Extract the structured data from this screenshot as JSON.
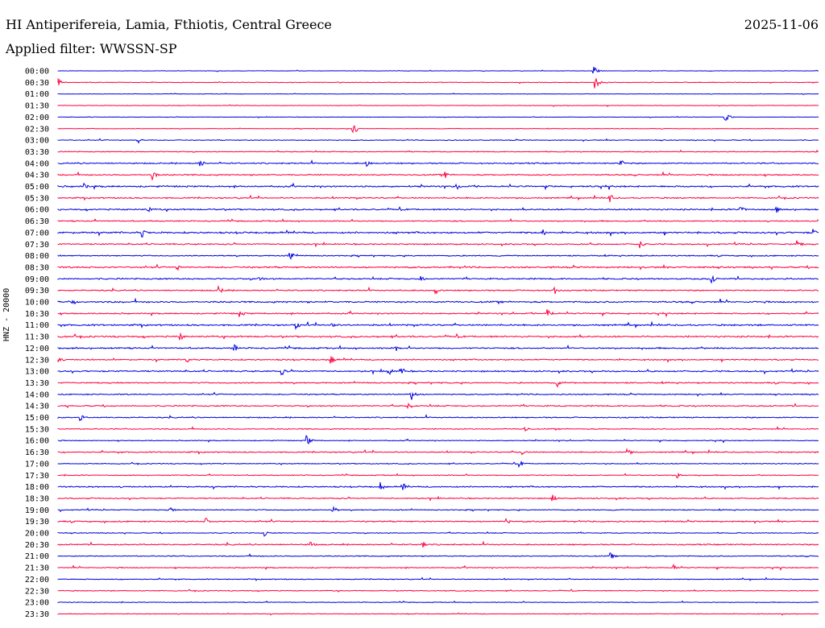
{
  "header": {
    "title": "HI Antiperifereia, Lamia, Fthiotis, Central Greece",
    "date": "2025-11-06",
    "filter": "Applied filter: WWSSN-SP"
  },
  "colors": {
    "trace_a": "#0000e0",
    "trace_b": "#ff0040",
    "background": "#ffffff",
    "text": "#000000"
  },
  "chart_data": {
    "type": "line",
    "ylabel": "HNZ - 20000",
    "rows": [
      "00:00",
      "00:30",
      "01:00",
      "01:30",
      "02:00",
      "02:30",
      "03:00",
      "03:30",
      "04:00",
      "04:30",
      "05:00",
      "05:30",
      "06:00",
      "06:30",
      "07:00",
      "07:30",
      "08:00",
      "08:30",
      "09:00",
      "09:30",
      "10:00",
      "10:30",
      "11:00",
      "11:30",
      "12:00",
      "12:30",
      "13:00",
      "13:30",
      "14:00",
      "14:30",
      "15:00",
      "15:30",
      "16:00",
      "16:30",
      "17:00",
      "17:30",
      "18:00",
      "18:30",
      "19:00",
      "19:30",
      "20:00",
      "20:30",
      "21:00",
      "21:30",
      "22:00",
      "22:30",
      "23:00",
      "23:30"
    ],
    "row_colors": "alternating trace_a / trace_b",
    "noise_level": [
      0.15,
      0.25,
      0.15,
      0.2,
      0.15,
      0.2,
      0.3,
      0.3,
      0.45,
      0.45,
      0.55,
      0.45,
      0.5,
      0.4,
      0.6,
      0.45,
      0.4,
      0.55,
      0.5,
      0.45,
      0.55,
      0.45,
      0.55,
      0.55,
      0.5,
      0.45,
      0.5,
      0.45,
      0.4,
      0.45,
      0.4,
      0.35,
      0.3,
      0.4,
      0.3,
      0.3,
      0.45,
      0.4,
      0.35,
      0.45,
      0.3,
      0.45,
      0.35,
      0.35,
      0.3,
      0.3,
      0.25,
      0.25
    ],
    "events": [
      {
        "row": 0,
        "t": 0.705,
        "amp": 6
      },
      {
        "row": 1,
        "t": 0.0,
        "amp": 5
      },
      {
        "row": 1,
        "t": 0.707,
        "amp": 8
      },
      {
        "row": 4,
        "t": 0.878,
        "amp": 7
      },
      {
        "row": 5,
        "t": 0.388,
        "amp": 11
      },
      {
        "row": 6,
        "t": 0.105,
        "amp": 4
      },
      {
        "row": 8,
        "t": 0.187,
        "amp": 5
      },
      {
        "row": 8,
        "t": 0.405,
        "amp": 5
      },
      {
        "row": 8,
        "t": 0.74,
        "amp": 5
      },
      {
        "row": 9,
        "t": 0.124,
        "amp": 7
      },
      {
        "row": 9,
        "t": 0.51,
        "amp": 4
      },
      {
        "row": 10,
        "t": 0.035,
        "amp": 4
      },
      {
        "row": 10,
        "t": 0.525,
        "amp": 5
      },
      {
        "row": 11,
        "t": 0.726,
        "amp": 6
      },
      {
        "row": 12,
        "t": 0.118,
        "amp": 5
      },
      {
        "row": 12,
        "t": 0.897,
        "amp": 6
      },
      {
        "row": 12,
        "t": 0.945,
        "amp": 4
      },
      {
        "row": 14,
        "t": 0.111,
        "amp": 6
      },
      {
        "row": 14,
        "t": 0.637,
        "amp": 5
      },
      {
        "row": 14,
        "t": 0.994,
        "amp": 5
      },
      {
        "row": 15,
        "t": 0.766,
        "amp": 5
      },
      {
        "row": 15,
        "t": 0.973,
        "amp": 6
      },
      {
        "row": 16,
        "t": 0.306,
        "amp": 6
      },
      {
        "row": 17,
        "t": 0.157,
        "amp": 4
      },
      {
        "row": 18,
        "t": 0.264,
        "amp": 5
      },
      {
        "row": 18,
        "t": 0.476,
        "amp": 6
      },
      {
        "row": 18,
        "t": 0.86,
        "amp": 6
      },
      {
        "row": 19,
        "t": 0.212,
        "amp": 5
      },
      {
        "row": 19,
        "t": 0.497,
        "amp": 5
      },
      {
        "row": 19,
        "t": 0.653,
        "amp": 5
      },
      {
        "row": 20,
        "t": 0.02,
        "amp": 4
      },
      {
        "row": 21,
        "t": 0.24,
        "amp": 5
      },
      {
        "row": 21,
        "t": 0.645,
        "amp": 7
      },
      {
        "row": 22,
        "t": 0.313,
        "amp": 6
      },
      {
        "row": 22,
        "t": 0.361,
        "amp": 6
      },
      {
        "row": 23,
        "t": 0.161,
        "amp": 5
      },
      {
        "row": 24,
        "t": 0.232,
        "amp": 5
      },
      {
        "row": 24,
        "t": 0.445,
        "amp": 4
      },
      {
        "row": 25,
        "t": 0.0,
        "amp": 5
      },
      {
        "row": 25,
        "t": 0.168,
        "amp": 6
      },
      {
        "row": 25,
        "t": 0.36,
        "amp": 5
      },
      {
        "row": 26,
        "t": 0.295,
        "amp": 5
      },
      {
        "row": 26,
        "t": 0.435,
        "amp": 6
      },
      {
        "row": 26,
        "t": 0.451,
        "amp": 6
      },
      {
        "row": 27,
        "t": 0.657,
        "amp": 5
      },
      {
        "row": 28,
        "t": 0.465,
        "amp": 7
      },
      {
        "row": 29,
        "t": 0.461,
        "amp": 5
      },
      {
        "row": 30,
        "t": 0.03,
        "amp": 4
      },
      {
        "row": 31,
        "t": 0.615,
        "amp": 4
      },
      {
        "row": 32,
        "t": 0.328,
        "amp": 6
      },
      {
        "row": 33,
        "t": 0.61,
        "amp": 4
      },
      {
        "row": 33,
        "t": 0.75,
        "amp": 4
      },
      {
        "row": 34,
        "t": 0.608,
        "amp": 4
      },
      {
        "row": 35,
        "t": 0.815,
        "amp": 4
      },
      {
        "row": 36,
        "t": 0.424,
        "amp": 6
      },
      {
        "row": 36,
        "t": 0.455,
        "amp": 4
      },
      {
        "row": 37,
        "t": 0.65,
        "amp": 6
      },
      {
        "row": 38,
        "t": 0.148,
        "amp": 4
      },
      {
        "row": 38,
        "t": 0.362,
        "amp": 5
      },
      {
        "row": 39,
        "t": 0.195,
        "amp": 5
      },
      {
        "row": 39,
        "t": 0.59,
        "amp": 4
      },
      {
        "row": 40,
        "t": 0.272,
        "amp": 4
      },
      {
        "row": 41,
        "t": 0.333,
        "amp": 4
      },
      {
        "row": 41,
        "t": 0.479,
        "amp": 5
      },
      {
        "row": 42,
        "t": 0.727,
        "amp": 4
      },
      {
        "row": 43,
        "t": 0.81,
        "amp": 4
      }
    ]
  }
}
